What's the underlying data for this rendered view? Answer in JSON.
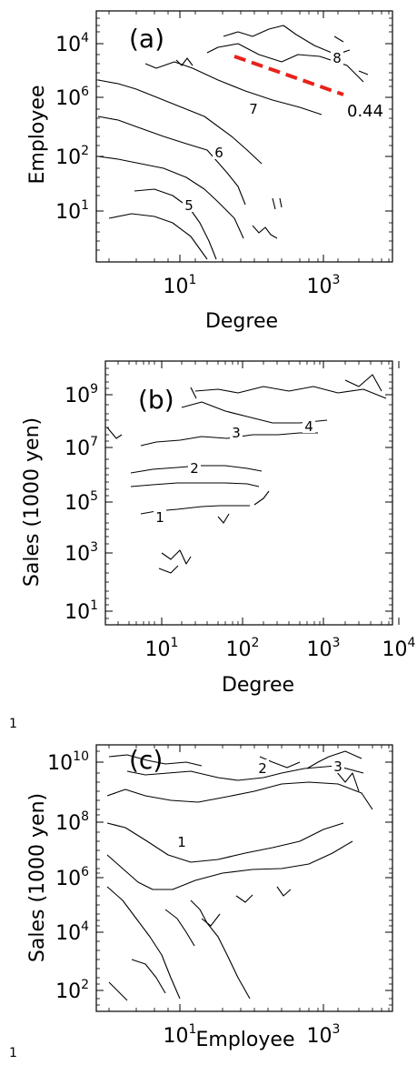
{
  "chart_data": [
    {
      "type": "contour",
      "panel_label": "(a)",
      "xlabel": "Degree",
      "ylabel": "Employee",
      "x_scale": "log",
      "y_scale": "log",
      "x_ticks": [
        {
          "base": "10",
          "exp": "1"
        },
        {
          "base": "10",
          "exp": "3"
        }
      ],
      "y_ticks": [
        {
          "base": "10",
          "exp": "4"
        },
        {
          "base": "10",
          "exp": "6"
        },
        {
          "base": "10",
          "exp": "2"
        },
        {
          "base": "10",
          "exp": "1"
        }
      ],
      "contour_labels": [
        "8",
        "7",
        "6",
        "5"
      ],
      "annotation": {
        "text": "0.44",
        "color": "#e8221a"
      }
    },
    {
      "type": "contour",
      "panel_label": "(b)",
      "xlabel": "Degree",
      "ylabel": "Sales (1000 yen)",
      "x_scale": "log",
      "y_scale": "log",
      "x_ticks": [
        {
          "base": "10",
          "exp": "1"
        },
        {
          "base": "10",
          "exp": "2"
        },
        {
          "base": "10",
          "exp": "3"
        },
        {
          "base": "10",
          "exp": "4"
        }
      ],
      "y_ticks": [
        {
          "base": "10",
          "exp": "9"
        },
        {
          "base": "10",
          "exp": "7"
        },
        {
          "base": "10",
          "exp": "5"
        },
        {
          "base": "10",
          "exp": "3"
        },
        {
          "base": "10",
          "exp": "1"
        }
      ],
      "contour_labels": [
        "4",
        "3",
        "2",
        "1"
      ]
    },
    {
      "type": "contour",
      "panel_label": "(c)",
      "xlabel": "Employee",
      "ylabel": "Sales (1000 yen)",
      "x_scale": "log",
      "y_scale": "log",
      "x_ticks": [
        {
          "base": "10",
          "exp": "1"
        },
        {
          "base": "10",
          "exp": "3"
        }
      ],
      "y_ticks": [
        {
          "base": "10",
          "exp": "10"
        },
        {
          "base": "10",
          "exp": "8"
        },
        {
          "base": "10",
          "exp": "6"
        },
        {
          "base": "10",
          "exp": "4"
        },
        {
          "base": "10",
          "exp": "2"
        }
      ],
      "contour_labels": [
        "3",
        "2",
        "1"
      ]
    }
  ],
  "stray_marks": [
    "1",
    "1"
  ]
}
